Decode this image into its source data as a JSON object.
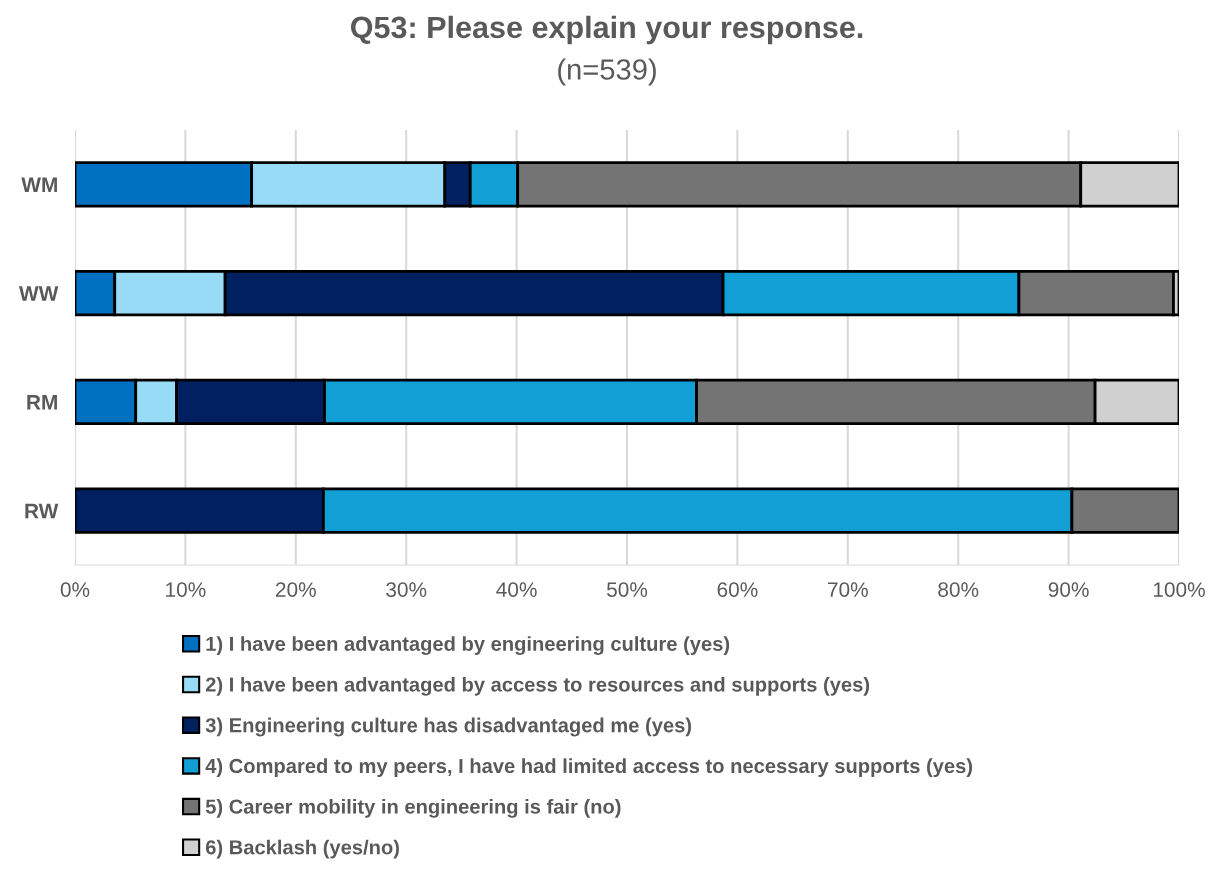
{
  "chart_data": {
    "type": "bar",
    "orientation": "horizontal",
    "stacked": true,
    "title": "Q53: Please explain your response.",
    "subtitle": "(n=539)",
    "categories": [
      "WM",
      "WW",
      "RM",
      "RW"
    ],
    "series": [
      {
        "name": "1) I have been advantaged by engineering culture (yes)",
        "color": "#0070c0",
        "values": [
          16.0,
          3.6,
          5.5,
          0
        ]
      },
      {
        "name": "2) I have been advantaged by access to resources and supports (yes)",
        "color": "#97dbf7",
        "values": [
          17.5,
          10.0,
          3.7,
          0
        ]
      },
      {
        "name": "3) Engineering culture has disadvantaged me (yes)",
        "color": "#002060",
        "values": [
          2.3,
          45.1,
          13.4,
          22.5
        ]
      },
      {
        "name": "4) Compared to my peers, I have had limited access to necessary supports (yes)",
        "color": "#119fd6",
        "values": [
          4.3,
          26.8,
          33.7,
          67.8
        ]
      },
      {
        "name": "5) Career mobility in engineering is fair (no)",
        "color": "#747474",
        "values": [
          51.0,
          14.0,
          36.1,
          9.7
        ]
      },
      {
        "name": "6) Backlash (yes/no)",
        "color": "#d0d0d0",
        "values": [
          8.9,
          0.5,
          7.6,
          0
        ]
      }
    ],
    "xlim": [
      0,
      100
    ],
    "xticks": [
      {
        "value": 0,
        "label": "0%"
      },
      {
        "value": 10,
        "label": "10%"
      },
      {
        "value": 20,
        "label": "20%"
      },
      {
        "value": 30,
        "label": "30%"
      },
      {
        "value": 40,
        "label": "40%"
      },
      {
        "value": 50,
        "label": "50%"
      },
      {
        "value": 60,
        "label": "60%"
      },
      {
        "value": 70,
        "label": "70%"
      },
      {
        "value": 80,
        "label": "80%"
      },
      {
        "value": 90,
        "label": "90%"
      },
      {
        "value": 100,
        "label": "100%"
      }
    ],
    "grid": "x",
    "legend": "bottom"
  }
}
